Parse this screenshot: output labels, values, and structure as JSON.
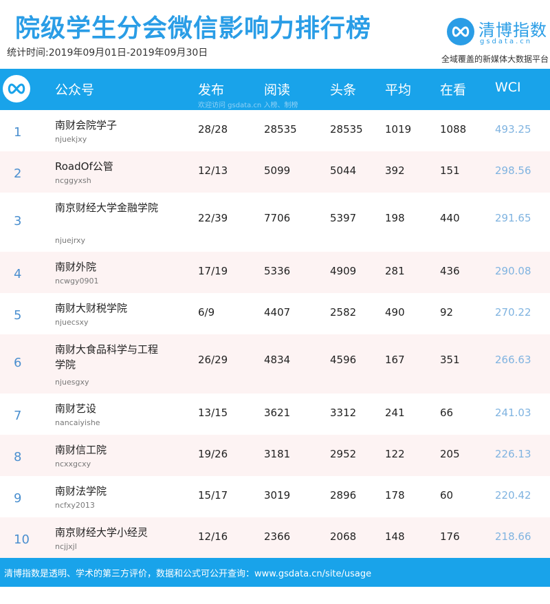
{
  "header": {
    "title": "院级学生分会微信影响力排行榜",
    "date_range": "统计时间:2019年09月01日-2019年09月30日",
    "brand_name": "清博指数",
    "brand_domain": "gsdata.cn",
    "tagline": "全域覆盖的新媒体大数据平台"
  },
  "table": {
    "columns": {
      "account": "公众号",
      "publish": "发布",
      "reads": "阅读",
      "headline": "头条",
      "average": "平均",
      "watching": "在看",
      "wci": "WCI"
    },
    "watermark": "欢迎访问 gsdata.cn 入榜、制榜",
    "rows": [
      {
        "rank": "1",
        "name": "南财会院学子",
        "id": "njuekjxy",
        "publish": "28/28",
        "reads": "28535",
        "headline": "28535",
        "average": "1019",
        "watching": "1088",
        "wci": "493.25"
      },
      {
        "rank": "2",
        "name": "RoadOf公管",
        "id": "ncggyxsh",
        "publish": "12/13",
        "reads": "5099",
        "headline": "5044",
        "average": "392",
        "watching": "151",
        "wci": "298.56"
      },
      {
        "rank": "3",
        "name": "南京财经大学金融学院",
        "id": "njuejrxy",
        "publish": "22/39",
        "reads": "7706",
        "headline": "5397",
        "average": "198",
        "watching": "440",
        "wci": "291.65"
      },
      {
        "rank": "4",
        "name": "南财外院",
        "id": "ncwgy0901",
        "publish": "17/19",
        "reads": "5336",
        "headline": "4909",
        "average": "281",
        "watching": "436",
        "wci": "290.08"
      },
      {
        "rank": "5",
        "name": "南财大财税学院",
        "id": "njuecsxy",
        "publish": "6/9",
        "reads": "4407",
        "headline": "2582",
        "average": "490",
        "watching": "92",
        "wci": "270.22"
      },
      {
        "rank": "6",
        "name": "南财大食品科学与工程学院",
        "id": "njuesgxy",
        "publish": "26/29",
        "reads": "4834",
        "headline": "4596",
        "average": "167",
        "watching": "351",
        "wci": "266.63"
      },
      {
        "rank": "7",
        "name": "南财艺设",
        "id": "nancaiyishe",
        "publish": "13/15",
        "reads": "3621",
        "headline": "3312",
        "average": "241",
        "watching": "66",
        "wci": "241.03"
      },
      {
        "rank": "8",
        "name": "南财信工院",
        "id": "ncxxgcxy",
        "publish": "19/26",
        "reads": "3181",
        "headline": "2952",
        "average": "122",
        "watching": "205",
        "wci": "226.13"
      },
      {
        "rank": "9",
        "name": "南财法学院",
        "id": "ncfxy2013",
        "publish": "15/17",
        "reads": "3019",
        "headline": "2896",
        "average": "178",
        "watching": "60",
        "wci": "220.42"
      },
      {
        "rank": "10",
        "name": "南京财经大学小经灵",
        "id": "ncjjxjl",
        "publish": "12/16",
        "reads": "2366",
        "headline": "2068",
        "average": "148",
        "watching": "176",
        "wci": "218.66"
      }
    ]
  },
  "footer": {
    "text": "清博指数是透明、学术的第三方评价，数据和公式可公开查询：www.gsdata.cn/site/usage"
  },
  "icons": {
    "logo": "infinity-logo-icon",
    "header": "infinity-logo-icon"
  },
  "colors": {
    "brand_blue": "#19a3ea",
    "title_blue": "#2a9de6",
    "alt_row": "#fdf3f3",
    "wci_text": "#7fb3e0"
  }
}
